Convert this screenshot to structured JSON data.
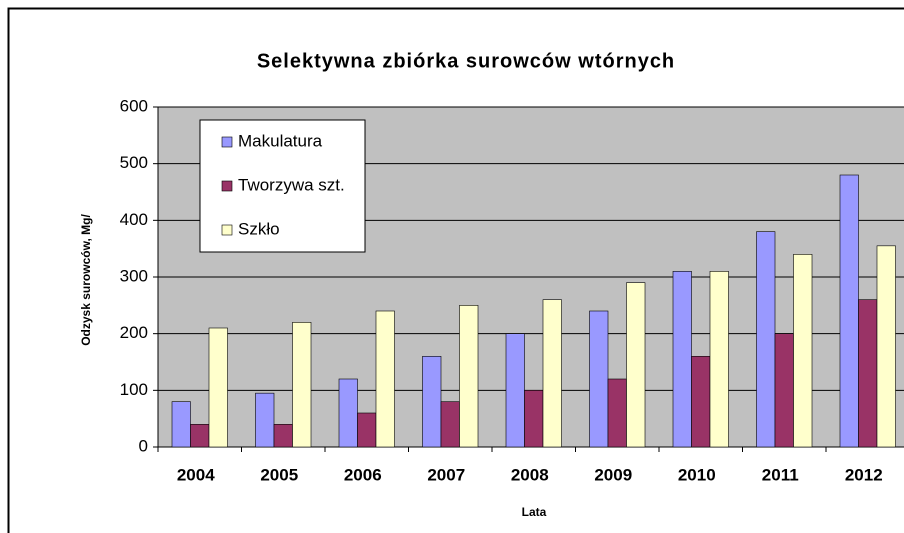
{
  "chart_data": {
    "type": "bar",
    "title": "Selektywna zbiórka surowców wtórnych",
    "x_label": "Lata",
    "y_label": "Odzysk surowców, Mg/",
    "categories": [
      "2004",
      "2005",
      "2006",
      "2007",
      "2008",
      "2009",
      "2010",
      "2011",
      "2012"
    ],
    "series": [
      {
        "name": "Makulatura",
        "color": "#9999ff",
        "values": [
          80,
          95,
          120,
          160,
          200,
          240,
          310,
          380,
          480
        ]
      },
      {
        "name": "Tworzywa szt.",
        "color": "#993366",
        "values": [
          40,
          40,
          60,
          80,
          100,
          120,
          160,
          200,
          260
        ]
      },
      {
        "name": "Szkło",
        "color": "#ffffcc",
        "values": [
          210,
          220,
          240,
          250,
          260,
          290,
          310,
          340,
          355
        ]
      }
    ],
    "ylim": [
      0,
      600
    ],
    "yticks": [
      0,
      100,
      200,
      300,
      400,
      500,
      600
    ],
    "grid": true,
    "legend": "upper left"
  }
}
